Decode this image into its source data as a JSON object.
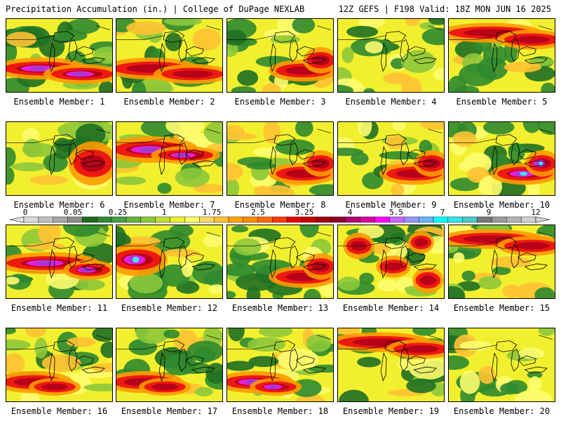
{
  "header": {
    "left": "Precipitation Accumulation (in.) | College of DuPage NEXLAB",
    "right": "12Z GEFS | F198 Valid: 18Z MON JUN 16 2025"
  },
  "panels": [
    {
      "label": "Ensemble Member: 1",
      "heavy_band": "south",
      "max_color": "magenta"
    },
    {
      "label": "Ensemble Member: 2",
      "heavy_band": "south",
      "max_color": "red"
    },
    {
      "label": "Ensemble Member: 3",
      "heavy_band": "southeast",
      "max_color": "orange"
    },
    {
      "label": "Ensemble Member: 4",
      "heavy_band": "none",
      "max_color": "orange"
    },
    {
      "label": "Ensemble Member: 5",
      "heavy_band": "north",
      "max_color": "red"
    },
    {
      "label": "Ensemble Member: 6",
      "heavy_band": "east",
      "max_color": "orange"
    },
    {
      "label": "Ensemble Member: 7",
      "heavy_band": "central-west",
      "max_color": "magenta"
    },
    {
      "label": "Ensemble Member: 8",
      "heavy_band": "southeast",
      "max_color": "red"
    },
    {
      "label": "Ensemble Member: 9",
      "heavy_band": "southeast",
      "max_color": "red"
    },
    {
      "label": "Ensemble Member: 10",
      "heavy_band": "southeast",
      "max_color": "cyan"
    },
    {
      "label": "Ensemble Member: 11",
      "heavy_band": "central",
      "max_color": "magenta"
    },
    {
      "label": "Ensemble Member: 12",
      "heavy_band": "west",
      "max_color": "cyan"
    },
    {
      "label": "Ensemble Member: 13",
      "heavy_band": "southeast",
      "max_color": "red"
    },
    {
      "label": "Ensemble Member: 14",
      "heavy_band": "scattered",
      "max_color": "red"
    },
    {
      "label": "Ensemble Member: 15",
      "heavy_band": "north",
      "max_color": "red"
    },
    {
      "label": "Ensemble Member: 16",
      "heavy_band": "southwest",
      "max_color": "orange"
    },
    {
      "label": "Ensemble Member: 17",
      "heavy_band": "southwest",
      "max_color": "orange"
    },
    {
      "label": "Ensemble Member: 18",
      "heavy_band": "southwest",
      "max_color": "magenta"
    },
    {
      "label": "Ensemble Member: 19",
      "heavy_band": "north",
      "max_color": "red"
    },
    {
      "label": "Ensemble Member: 20",
      "heavy_band": "none",
      "max_color": "orange"
    }
  ],
  "colorbar": {
    "labels": [
      "0",
      "0.05",
      "0.25",
      "1",
      "1.75",
      "2.5",
      "3.25",
      "4",
      "5.5",
      "7",
      "9",
      "12"
    ],
    "colors": [
      "#d9d9d9",
      "#c0c0c0",
      "#a6a6a6",
      "#8c8c8c",
      "#1e6b1e",
      "#2f8a2f",
      "#46a046",
      "#63b53a",
      "#8dc83a",
      "#c3dc37",
      "#f0f032",
      "#ffff66",
      "#ffd966",
      "#ffc233",
      "#ffa500",
      "#ff8c00",
      "#ff6a00",
      "#ff3c00",
      "#e60000",
      "#c80000",
      "#a00010",
      "#8c0028",
      "#b4006e",
      "#d7009b",
      "#ff00ff",
      "#c864ff",
      "#9696ff",
      "#64b4ff",
      "#00ffff",
      "#32e6e6",
      "#50c8c8",
      "#787878",
      "#9a9a9a",
      "#b4b4b4",
      "#cfcfcf"
    ]
  }
}
